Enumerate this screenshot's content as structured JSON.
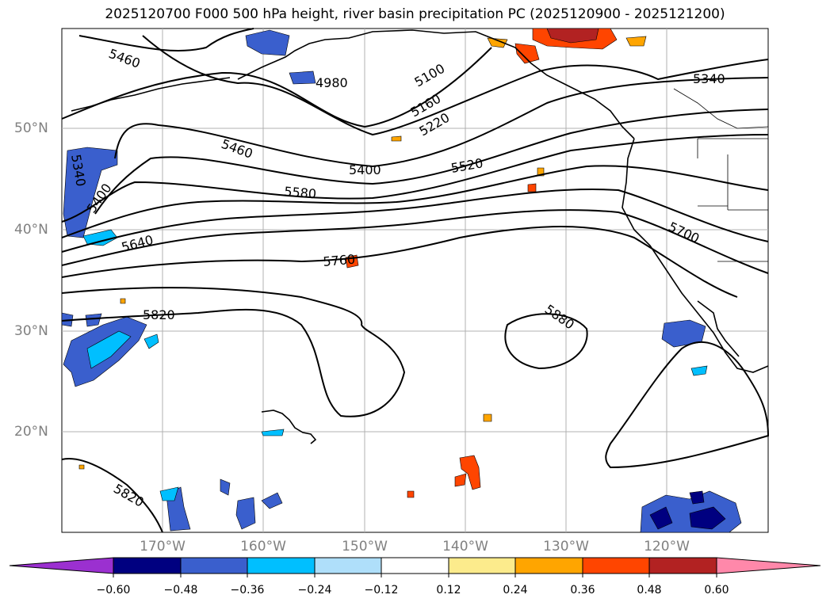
{
  "title": "2025120700 F000 500 hPa height, river basin precipitation PC (2025120900 - 2025121200)",
  "lat_labels": [
    "50°N",
    "40°N",
    "30°N",
    "20°N"
  ],
  "lon_labels": [
    "170°W",
    "160°W",
    "150°W",
    "140°W",
    "130°W",
    "120°W"
  ],
  "contour_labels": [
    "5460",
    "5340",
    "5400",
    "5640",
    "5820",
    "5820",
    "5460",
    "5400",
    "5580",
    "5760",
    "4980",
    "5100",
    "5160",
    "5220",
    "5520",
    "5340",
    "5700",
    "5880"
  ],
  "colorbar": {
    "ticks": [
      "−0.60",
      "−0.48",
      "−0.36",
      "−0.24",
      "−0.12",
      "0.12",
      "0.24",
      "0.36",
      "0.48",
      "0.60"
    ],
    "colors": [
      "#9b30d0",
      "#000080",
      "#3a5fcd",
      "#00bfff",
      "#afdffa",
      "#ffffff",
      "#fceb8c",
      "#ffa500",
      "#ff4500",
      "#b22222",
      "#ff88aa"
    ]
  },
  "colors": {
    "land_outline": "#000000",
    "grid": "#b0b0b0",
    "label_gray": "#808080"
  }
}
